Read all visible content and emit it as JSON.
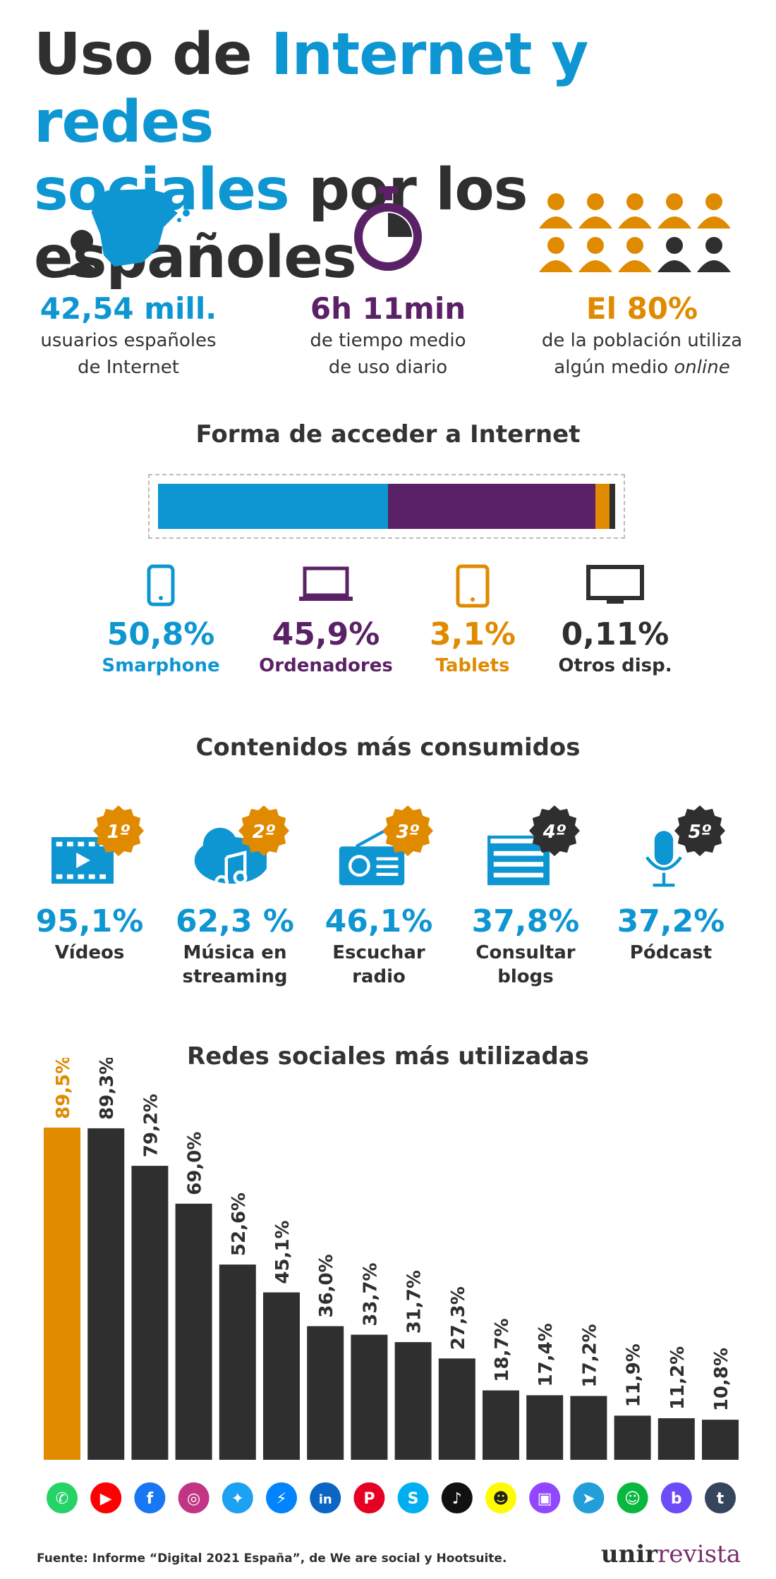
{
  "title": {
    "part1": "Uso de ",
    "part2": "Internet y redes",
    "part3": "sociales",
    "part4": " por los españoles"
  },
  "stats": [
    {
      "value": "42,54 mill.",
      "line1": "usuarios españoles",
      "line2": "de Internet",
      "color": "#0e96d2"
    },
    {
      "value": "6h 11min",
      "line1": "de tiempo medio",
      "line2": "de uso diario",
      "color": "#5b2166"
    },
    {
      "value": "El 80%",
      "line1": "de la población utiliza",
      "line2": "algún medio ",
      "line2_italic": "online",
      "color": "#e08a00"
    }
  ],
  "access": {
    "title": "Forma de acceder a Internet",
    "segments": [
      {
        "value": 50.8,
        "color": "#0e96d2"
      },
      {
        "value": 45.9,
        "color": "#5b2166"
      },
      {
        "value": 3.1,
        "color": "#e08a00"
      },
      {
        "value": 0.11,
        "color": "#2f2f2f"
      }
    ],
    "devices": [
      {
        "pct": "50,8%",
        "label": "Smarphone",
        "color": "#0e96d2",
        "icon": "smartphone-icon"
      },
      {
        "pct": "45,9%",
        "label": "Ordenadores",
        "color": "#5b2166",
        "icon": "laptop-icon"
      },
      {
        "pct": "3,1%",
        "label": "Tablets",
        "color": "#e08a00",
        "icon": "tablet-icon"
      },
      {
        "pct": "0,11%",
        "label": "Otros disp.",
        "color": "#2f2f2f",
        "icon": "tv-icon"
      }
    ]
  },
  "content": {
    "title": "Contenidos más consumidos",
    "items": [
      {
        "rank": "1º",
        "pct": "95,1%",
        "l1": "Vídeos",
        "l2": "",
        "badge": "#e08a00",
        "icon": "video-icon"
      },
      {
        "rank": "2º",
        "pct": "62,3 %",
        "l1": "Música en",
        "l2": "streaming",
        "badge": "#e08a00",
        "icon": "music-cloud-icon"
      },
      {
        "rank": "3º",
        "pct": "46,1%",
        "l1": "Escuchar",
        "l2": "radio",
        "badge": "#e08a00",
        "icon": "radio-icon"
      },
      {
        "rank": "4º",
        "pct": "37,8%",
        "l1": "Consultar",
        "l2": "blogs",
        "badge": "#2f2f2f",
        "icon": "blog-icon"
      },
      {
        "rank": "5º",
        "pct": "37,2%",
        "l1": "Pódcast",
        "l2": "",
        "badge": "#2f2f2f",
        "icon": "microphone-icon"
      }
    ]
  },
  "chart_data": {
    "type": "bar",
    "title": "Redes sociales más utilizadas",
    "categories": [
      "WhatsApp",
      "YouTube",
      "Facebook",
      "Instagram",
      "Twitter",
      "Messenger",
      "LinkedIn",
      "Pinterest",
      "Skype",
      "TikTok",
      "Snapchat",
      "Twitch",
      "Telegram",
      "WeChat",
      "Badoo",
      "Tumblr"
    ],
    "values": [
      89.5,
      89.3,
      79.2,
      69.0,
      52.6,
      45.1,
      36.0,
      33.7,
      31.7,
      27.3,
      18.7,
      17.4,
      17.2,
      11.9,
      11.2,
      10.8
    ],
    "labels": [
      "89,5%",
      "89,3%",
      "79,2%",
      "69,0%",
      "52,6%",
      "45,1%",
      "36,0%",
      "33,7%",
      "31,7%",
      "27,3%",
      "18,7%",
      "17,4%",
      "17,2%",
      "11,9%",
      "11,2%",
      "10,8%"
    ],
    "highlight_color": "#e08a00",
    "bar_color": "#2f2f2f",
    "ylim": [
      0,
      100
    ],
    "icon_colors": [
      "#25d366",
      "#ff0000",
      "#1877f2",
      "#c13584",
      "#1da1f2",
      "#0084ff",
      "#0a66c2",
      "#e60023",
      "#00aff0",
      "#111111",
      "#fffc00",
      "#9146ff",
      "#229ed9",
      "#09b83e",
      "#6b4cf6",
      "#35465c"
    ],
    "icon_glyphs": [
      "✆",
      "▶",
      "f",
      "◎",
      "✦",
      "⚡",
      "in",
      "P",
      "S",
      "♪",
      "☻",
      "▣",
      "➤",
      "☺",
      "b",
      "t"
    ]
  },
  "footer": {
    "source": "Fuente: Informe “Digital 2021 España”, de We are social y Hootsuite.",
    "brand1": "unir",
    "brand2": "revista"
  }
}
